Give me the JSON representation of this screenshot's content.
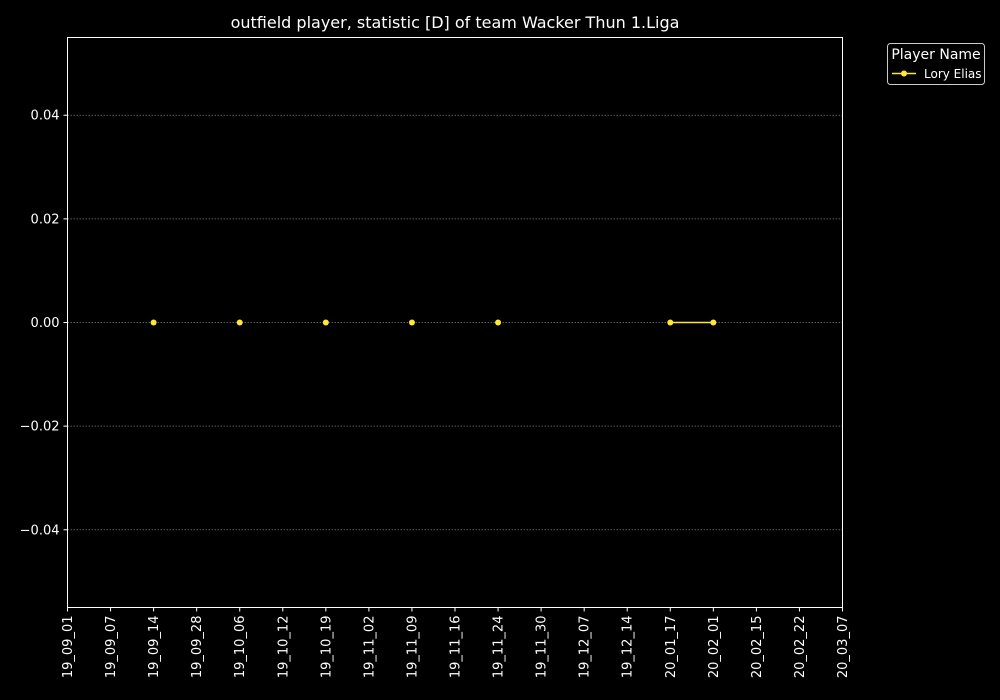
{
  "chart_data": {
    "type": "line",
    "title": "outfield player, statistic [D] of team Wacker Thun 1.Liga",
    "xlabel": "",
    "ylabel": "",
    "x_ticks": [
      "19_09_01",
      "19_09_07",
      "19_09_14",
      "19_09_28",
      "19_10_06",
      "19_10_12",
      "19_10_19",
      "19_11_02",
      "19_11_09",
      "19_11_16",
      "19_11_24",
      "19_11_30",
      "19_12_07",
      "19_12_14",
      "20_01_17",
      "20_02_01",
      "20_02_15",
      "20_02_22",
      "20_03_07"
    ],
    "y_ticks": [
      "0.04",
      "0.02",
      "0.00",
      "−0.02",
      "−0.04"
    ],
    "ylim": [
      -0.055,
      0.055
    ],
    "grid": "horizontal dotted",
    "legend": {
      "title": "Player Name",
      "placement": "outside top-right"
    },
    "series": [
      {
        "name": "Lory Elias",
        "color": "#ffe733",
        "points": [
          {
            "x": "19_09_14",
            "y": 0,
            "connect_prev": false
          },
          {
            "x": "19_10_06",
            "y": 0,
            "connect_prev": false
          },
          {
            "x": "19_10_19",
            "y": 0,
            "connect_prev": false
          },
          {
            "x": "19_11_09",
            "y": 0,
            "connect_prev": false
          },
          {
            "x": "19_11_24",
            "y": 0,
            "connect_prev": false
          },
          {
            "x": "20_01_17",
            "y": 0,
            "connect_prev": false
          },
          {
            "x": "20_02_01",
            "y": 0,
            "connect_prev": true
          }
        ]
      }
    ]
  }
}
